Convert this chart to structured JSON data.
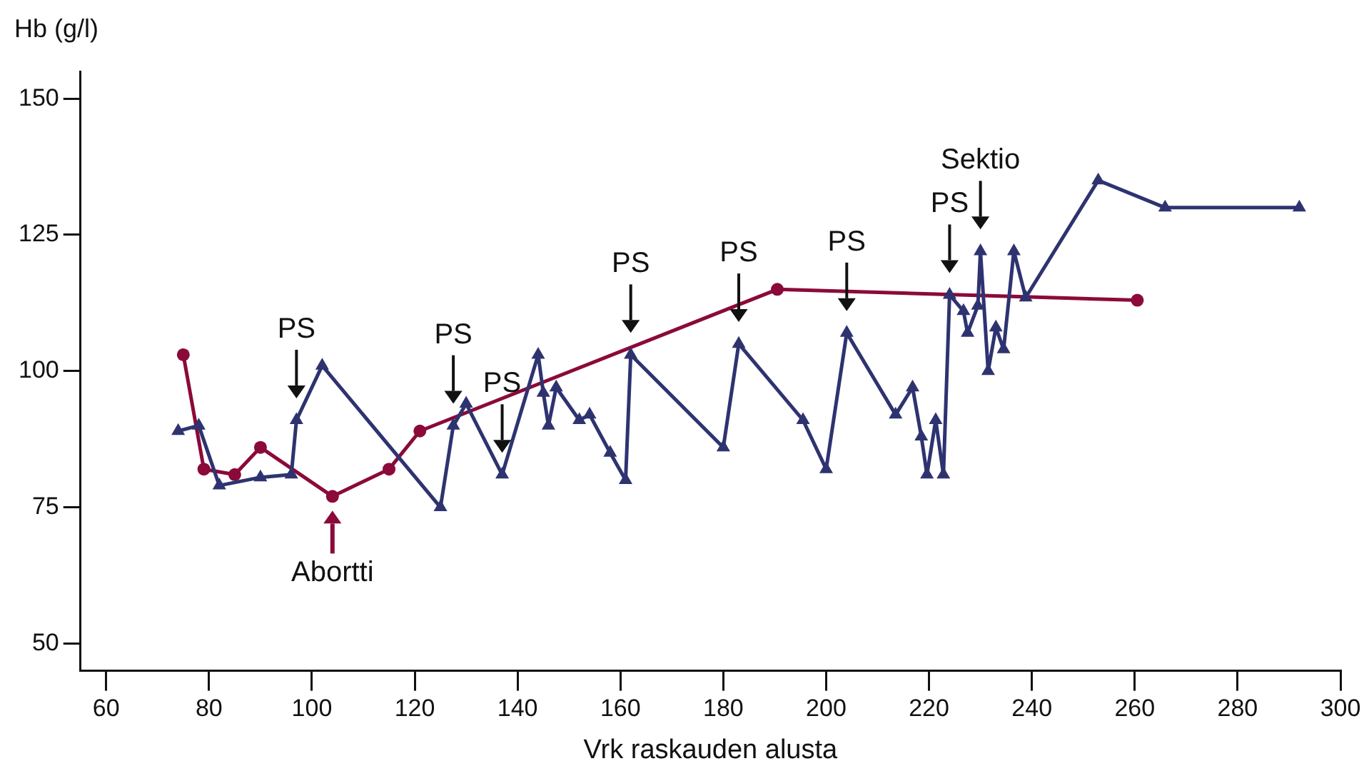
{
  "chart_data": {
    "type": "line",
    "xlabel": "Vrk raskauden alusta",
    "ylabel": "Hb (g/l)",
    "xlim": [
      55,
      300
    ],
    "xticks": [
      60,
      80,
      100,
      120,
      140,
      160,
      180,
      200,
      220,
      240,
      260,
      280,
      300
    ],
    "ylim": [
      45,
      155
    ],
    "yticks": [
      50,
      75,
      100,
      125,
      150
    ],
    "grid": false,
    "legend": false,
    "line_style": "solid",
    "series": [
      {
        "color": "#2e3370",
        "marker": "triangle",
        "x": [
          74,
          78,
          82,
          90,
          96,
          97,
          102,
          125,
          127.5,
          130,
          137,
          144,
          145,
          146,
          147.5,
          152,
          154,
          158,
          161,
          162,
          180,
          183,
          195.5,
          200,
          204,
          213.5,
          216.8,
          218.5,
          219.6,
          221.3,
          222.8,
          224,
          226.7,
          227.5,
          229.5,
          230,
          231.5,
          233,
          234.5,
          236.5,
          238.8,
          252.9,
          265.9,
          292
        ],
        "values": [
          89,
          90,
          79,
          80.5,
          81,
          91,
          101,
          75,
          90,
          94,
          81,
          103,
          96,
          90,
          97,
          91,
          92,
          85,
          80,
          103,
          86,
          105,
          91,
          82,
          107,
          92,
          97,
          88,
          81,
          91,
          81,
          114,
          111,
          107,
          112,
          122,
          100,
          108,
          104,
          122,
          113.5,
          135,
          130,
          130
        ]
      },
      {
        "color": "#8b0a3a",
        "marker": "circle",
        "x": [
          75,
          79,
          85,
          90,
          104,
          115,
          121,
          190.5,
          260.5
        ],
        "values": [
          103,
          82,
          81,
          86,
          77,
          82,
          89,
          115,
          113
        ]
      }
    ],
    "annotations": [
      {
        "text": "PS",
        "x": 97,
        "y": 91
      },
      {
        "text": "PS",
        "x": 127.5,
        "y": 90
      },
      {
        "text": "PS",
        "x": 137,
        "y": 81
      },
      {
        "text": "PS",
        "x": 162,
        "y": 103
      },
      {
        "text": "PS",
        "x": 183,
        "y": 105
      },
      {
        "text": "PS",
        "x": 204,
        "y": 107
      },
      {
        "text": "PS",
        "x": 224,
        "y": 114
      },
      {
        "text": "Sektio",
        "x": 230,
        "y": 122
      },
      {
        "text": "Abortti",
        "x": 104,
        "y": 77
      }
    ]
  }
}
